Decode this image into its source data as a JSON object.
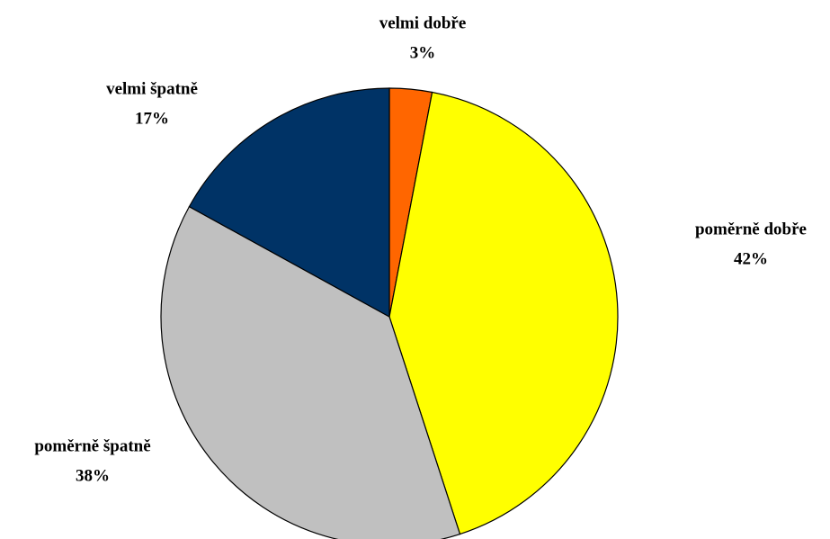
{
  "chart_data": {
    "type": "pie",
    "categories": [
      "velmi dobře",
      "poměrně dobře",
      "poměrně špatně",
      "velmi špatně"
    ],
    "values": [
      3,
      42,
      38,
      17
    ],
    "value_labels": [
      "3%",
      "42%",
      "38%",
      "17%"
    ],
    "colors": [
      "#ff6600",
      "#ffff00",
      "#c0c0c0",
      "#003366"
    ]
  }
}
